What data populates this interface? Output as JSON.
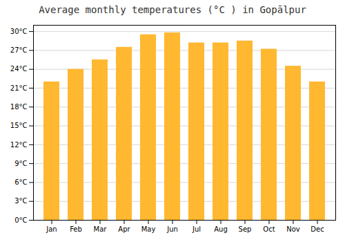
{
  "chart_data": {
    "type": "bar",
    "title": "Average monthly temperatures (°C ) in Gopālpur",
    "categories": [
      "Jan",
      "Feb",
      "Mar",
      "Apr",
      "May",
      "Jun",
      "Jul",
      "Aug",
      "Sep",
      "Oct",
      "Nov",
      "Dec"
    ],
    "values": [
      22.0,
      24.0,
      25.5,
      27.5,
      29.5,
      29.8,
      28.2,
      28.2,
      28.5,
      27.2,
      24.5,
      22.0
    ],
    "color": "#FFB830",
    "ylim": [
      0,
      31
    ],
    "yticks": [
      {
        "value": 0,
        "label": "0°C"
      },
      {
        "value": 3,
        "label": "3°C"
      },
      {
        "value": 6,
        "label": "6°C"
      },
      {
        "value": 9,
        "label": "9°C"
      },
      {
        "value": 12,
        "label": "12°C"
      },
      {
        "value": 15,
        "label": "15°C"
      },
      {
        "value": 18,
        "label": "18°C"
      },
      {
        "value": 21,
        "label": "21°C"
      },
      {
        "value": 24,
        "label": "24°C"
      },
      {
        "value": 27,
        "label": "27°C"
      },
      {
        "value": 30,
        "label": "30°C"
      }
    ],
    "grid": true
  }
}
